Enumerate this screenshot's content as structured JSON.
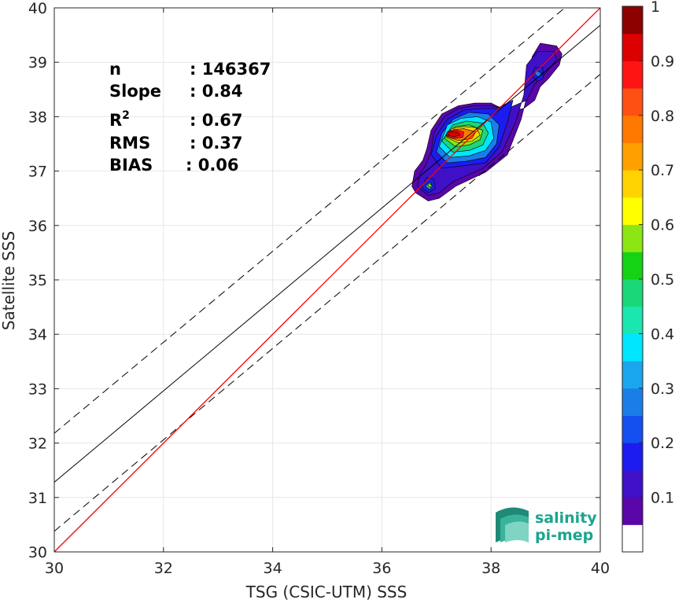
{
  "chart_data": {
    "type": "scatter",
    "subtype": "density-contour",
    "xlabel": "TSG (CSIC-UTM) SSS",
    "ylabel": "Satellite SSS",
    "xlim": [
      30,
      40
    ],
    "ylim": [
      30,
      40
    ],
    "xticks": [
      "30",
      "32",
      "34",
      "36",
      "38",
      "40"
    ],
    "yticks": [
      "30",
      "31",
      "32",
      "33",
      "34",
      "35",
      "36",
      "37",
      "38",
      "39",
      "40"
    ],
    "grid": true,
    "stats": [
      {
        "label": "n",
        "value": ": 146367"
      },
      {
        "label": "Slope",
        "value": ": 0.84"
      },
      {
        "label": "R",
        "sup": "2",
        "value": ": 0.67"
      },
      {
        "label": "RMS",
        "value": ": 0.37"
      },
      {
        "label": "BIAS",
        "value": ": 0.06"
      }
    ],
    "lines": {
      "one_to_one": {
        "x": [
          30,
          40
        ],
        "y": [
          30,
          40
        ],
        "color": "#ff0000"
      },
      "regression": {
        "x": [
          30,
          40
        ],
        "y": [
          31.28,
          39.68
        ],
        "color": "#000000"
      },
      "upper_envelope": {
        "x": [
          30,
          39.35
        ],
        "y": [
          32.18,
          40
        ],
        "color": "#000000",
        "style": "dashed"
      },
      "lower_envelope": {
        "x": [
          30,
          40
        ],
        "y": [
          30.38,
          38.78
        ],
        "color": "#000000",
        "style": "dashed"
      }
    },
    "density_contours": {
      "levels": [
        0.05,
        0.1,
        0.2,
        0.3,
        0.4,
        0.5,
        0.6,
        0.7,
        0.8,
        0.9
      ],
      "peak": {
        "x": 37.3,
        "y": 37.7
      }
    },
    "colorbar": {
      "range": [
        0,
        1
      ],
      "ticks": [
        "0.1",
        "0.2",
        "0.3",
        "0.4",
        "0.5",
        "0.6",
        "0.7",
        "0.8",
        "0.9",
        "1"
      ],
      "colors": [
        "#ffffff",
        "#5a06a8",
        "#3f10c8",
        "#1c1cf0",
        "#1450f0",
        "#1a7ee8",
        "#1aa6ee",
        "#00e6ff",
        "#1ae6b0",
        "#1ad87a",
        "#14d214",
        "#8ce614",
        "#ffff00",
        "#ffd200",
        "#ffa000",
        "#ff7800",
        "#ff5014",
        "#ff1414",
        "#dc0000",
        "#8c0000"
      ]
    }
  },
  "logo": {
    "line1": "salinity",
    "line2": "pi-mep"
  }
}
